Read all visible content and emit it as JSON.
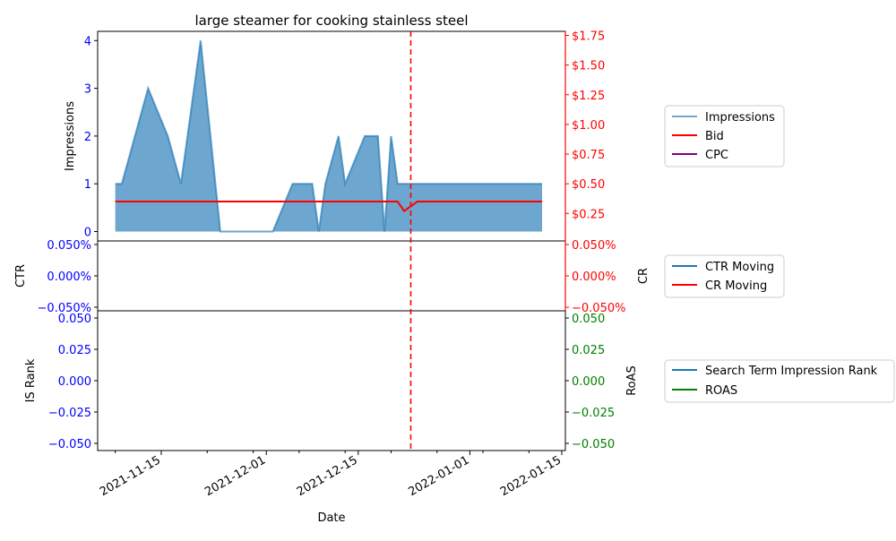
{
  "chart_data": {
    "type": "area",
    "title": "large steamer for cooking stainless steel",
    "xlabel": "Date",
    "x_ticks": [
      "2021-11-15",
      "2021-12-01",
      "2021-12-15",
      "2022-01-01",
      "2022-01-15"
    ],
    "marker_date": "2021-12-23",
    "colors": {
      "impressions": "#1f77b4",
      "bid": "#ff0000",
      "cpc": "#800080",
      "ctr": "#1f77b4",
      "cr": "#ff0000",
      "rank": "#1f77b4",
      "roas": "#008000",
      "left_tick": "#0000ff",
      "right_tick_top": "#ff0000",
      "right_tick_bottom": "#008000"
    },
    "panels": [
      {
        "id": "top",
        "ylabel_left": "Impressions",
        "ylabel_right": "",
        "ylim_left": [
          -0.1,
          4.2
        ],
        "ylim_right": [
          0,
          1.75
        ],
        "left_ticks": [
          "0",
          "1",
          "2",
          "3",
          "4"
        ],
        "right_ticks": [
          "$0.25",
          "$0.50",
          "$0.75",
          "$1.00",
          "$1.25",
          "$1.50",
          "$1.75"
        ],
        "legend": [
          "Impressions",
          "Bid",
          "CPC"
        ]
      },
      {
        "id": "middle",
        "ylabel_left": "CTR",
        "ylabel_right": "CR",
        "left_ticks": [
          "−0.050%",
          "0.000%",
          "0.050%"
        ],
        "right_ticks": [
          "−0.050%",
          "0.000%",
          "0.050%"
        ],
        "legend": [
          "CTR Moving",
          "CR Moving"
        ]
      },
      {
        "id": "bottom",
        "ylabel_left": "IS Rank",
        "ylabel_right": "RoAS",
        "left_ticks": [
          "−0.050",
          "−0.025",
          "0.000",
          "0.025",
          "0.050"
        ],
        "right_ticks": [
          "−0.050",
          "−0.025",
          "0.000",
          "0.025",
          "0.050"
        ],
        "legend": [
          "Search Term Impression Rank",
          "ROAS"
        ]
      }
    ],
    "series": [
      {
        "name": "Impressions",
        "points": [
          [
            "2021-11-08",
            1
          ],
          [
            "2021-11-09",
            1
          ],
          [
            "2021-11-13",
            3
          ],
          [
            "2021-11-16",
            2
          ],
          [
            "2021-11-18",
            1
          ],
          [
            "2021-11-21",
            4
          ],
          [
            "2021-11-24",
            0
          ],
          [
            "2021-12-02",
            0
          ],
          [
            "2021-12-05",
            1
          ],
          [
            "2021-12-08",
            1
          ],
          [
            "2021-12-09",
            0
          ],
          [
            "2021-12-10",
            1
          ],
          [
            "2021-12-12",
            2
          ],
          [
            "2021-12-13",
            1
          ],
          [
            "2021-12-16",
            2
          ],
          [
            "2021-12-18",
            2
          ],
          [
            "2021-12-19",
            0
          ],
          [
            "2021-12-20",
            2
          ],
          [
            "2021-12-21",
            1
          ],
          [
            "2021-12-24",
            1
          ],
          [
            "2021-12-25",
            1
          ],
          [
            "2022-01-12",
            1
          ]
        ]
      },
      {
        "name": "Bid",
        "points": [
          [
            "2021-11-08",
            0.35
          ],
          [
            "2021-12-21",
            0.35
          ],
          [
            "2021-12-22",
            0.27
          ],
          [
            "2021-12-24",
            0.35
          ],
          [
            "2022-01-12",
            0.35
          ]
        ]
      },
      {
        "name": "CPC",
        "points": []
      },
      {
        "name": "CTR Moving",
        "points": []
      },
      {
        "name": "CR Moving",
        "points": []
      },
      {
        "name": "Search Term Impression Rank",
        "points": []
      },
      {
        "name": "ROAS",
        "points": []
      }
    ]
  }
}
